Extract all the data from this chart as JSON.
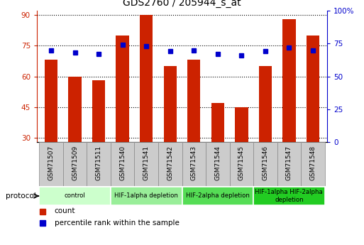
{
  "title": "GDS2760 / 205944_s_at",
  "samples": [
    "GSM71507",
    "GSM71509",
    "GSM71511",
    "GSM71540",
    "GSM71541",
    "GSM71542",
    "GSM71543",
    "GSM71544",
    "GSM71545",
    "GSM71546",
    "GSM71547",
    "GSM71548"
  ],
  "bar_values": [
    68,
    60,
    58,
    80,
    90,
    65,
    68,
    47,
    45,
    65,
    88,
    80
  ],
  "dot_values": [
    70,
    68,
    67,
    74,
    73,
    69,
    70,
    67,
    66,
    69,
    72,
    70
  ],
  "ylim_left": [
    28,
    92
  ],
  "ylim_right": [
    0,
    100
  ],
  "yticks_left": [
    30,
    45,
    60,
    75,
    90
  ],
  "yticks_right": [
    0,
    25,
    50,
    75,
    100
  ],
  "ytick_labels_right": [
    "0",
    "25",
    "50",
    "75",
    "100%"
  ],
  "bar_color": "#cc2200",
  "dot_color": "#0000cc",
  "xtick_bg": "#cccccc",
  "protocol_groups": [
    {
      "label": "control",
      "start": 0,
      "end": 3,
      "color": "#ccffcc"
    },
    {
      "label": "HIF-1alpha depletion",
      "start": 3,
      "end": 6,
      "color": "#99ee99"
    },
    {
      "label": "HIF-2alpha depletion",
      "start": 6,
      "end": 9,
      "color": "#55dd55"
    },
    {
      "label": "HIF-1alpha HIF-2alpha\ndepletion",
      "start": 9,
      "end": 12,
      "color": "#22cc22"
    }
  ],
  "legend_count_label": "count",
  "legend_pct_label": "percentile rank within the sample",
  "protocol_label": "protocol",
  "figsize": [
    5.13,
    3.45
  ],
  "dpi": 100
}
